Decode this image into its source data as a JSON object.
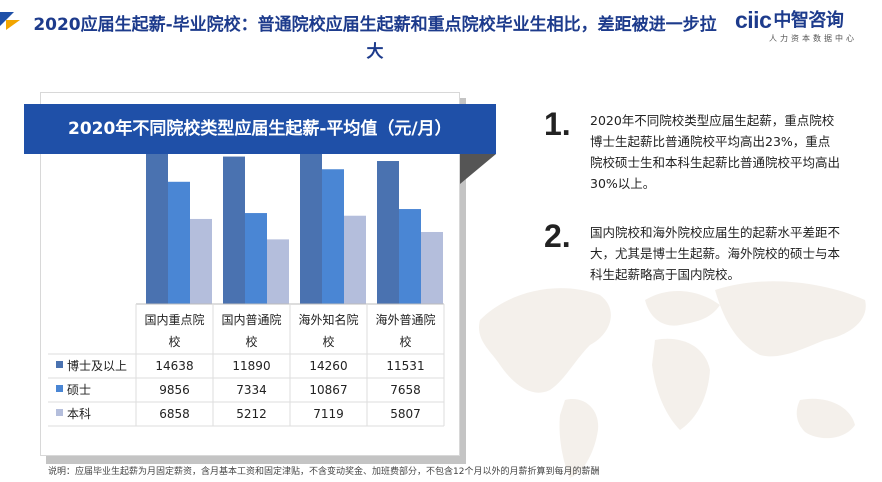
{
  "header": {
    "title": "2020应届生起薪-毕业院校：普通院校应届生起薪和重点院校毕业生相比，差距被进一步拉大",
    "logo_text": "ciic",
    "logo_name": "中智咨询",
    "logo_subtitle": "人力资本数据中心"
  },
  "chart_panel": {
    "title": "2020年不同院校类型应届生起薪-平均值（元/月）"
  },
  "chart_data": {
    "type": "bar",
    "title": "2020年不同院校类型应届生起薪-平均值（元/月）",
    "categories": [
      "国内重点院校",
      "国内普通院校",
      "海外知名院校",
      "海外普通院校"
    ],
    "series": [
      {
        "name": "博士及以上",
        "values": [
          14638,
          11890,
          14260,
          11531
        ]
      },
      {
        "name": "硕士",
        "values": [
          9856,
          7334,
          10867,
          7658
        ]
      },
      {
        "name": "本科",
        "values": [
          6858,
          5212,
          7119,
          5807
        ]
      }
    ],
    "colors": [
      "#4a72b0",
      "#4a86d4",
      "#b4bedc"
    ],
    "legend": "table-bottom",
    "grid": false
  },
  "points": [
    {
      "num": "1.",
      "text": "2020年不同院校类型应届生起薪，重点院校博士生起薪比普通院校平均高出23%，重点院校硕士生和本科生起薪比普通院校平均高出30%以上。"
    },
    {
      "num": "2.",
      "text": "国内院校和海外院校应届生的起薪水平差距不大，尤其是博士生起薪。海外院校的硕士与本科生起薪略高于国内院校。"
    }
  ],
  "footnote": "说明：应届毕业生起薪为月固定薪资，含月基本工资和固定津贴，不含变动奖金、加班费部分，不包含12个月以外的月薪折算到每月的薪酬"
}
